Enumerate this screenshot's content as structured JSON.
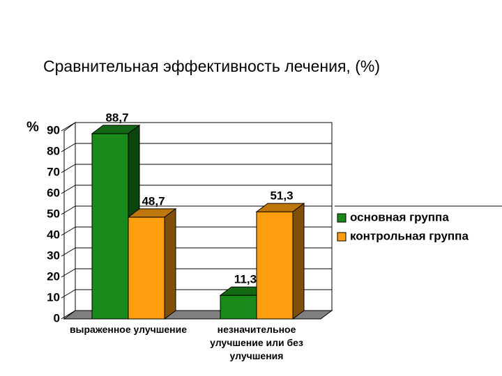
{
  "chart_data": {
    "type": "bar3d",
    "title": "Сравнительная эффективность лечения, (%)",
    "y_label": "%",
    "categories": [
      "выраженное улучшение",
      "незначительное улучшение или без улучшения"
    ],
    "series": [
      {
        "name": "основная группа",
        "color": "#1a8a1a",
        "values": [
          88.7,
          11.3
        ],
        "value_labels": [
          "88,7",
          "11,3"
        ]
      },
      {
        "name": "контрольная группа",
        "color": "#ff9f0f",
        "values": [
          48.7,
          51.3
        ],
        "value_labels": [
          "48,7",
          "51,3"
        ]
      }
    ],
    "ylim": [
      0,
      90
    ],
    "yticks": [
      0,
      10,
      20,
      30,
      40,
      50,
      60,
      70,
      80,
      90
    ],
    "grid": true,
    "legend": "right"
  }
}
